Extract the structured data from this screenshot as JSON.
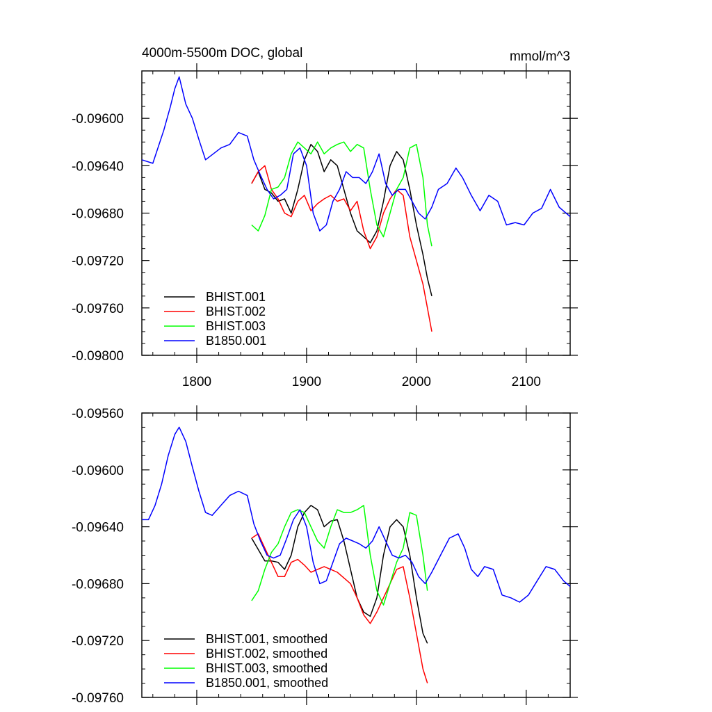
{
  "colors": {
    "BHIST.001": "#000000",
    "BHIST.002": "#ff0000",
    "BHIST.003": "#00ff00",
    "B1850.001": "#0000ff"
  },
  "chart_data": [
    {
      "type": "line",
      "title": "4000m-5500m DOC, global",
      "units": "mmol/m^3",
      "xlim": [
        1750,
        2140
      ],
      "ylim": [
        -0.098,
        -0.0956
      ],
      "x_ticks": [
        1800,
        1900,
        2000,
        2100
      ],
      "x_tick_labels": [
        "1800",
        "1900",
        "2000",
        "2100"
      ],
      "y_ticks": [
        -0.098,
        -0.0976,
        -0.0972,
        -0.0968,
        -0.0964,
        -0.096
      ],
      "y_tick_labels": [
        "-0.09800",
        "-0.09760",
        "-0.09720",
        "-0.09680",
        "-0.09640",
        "-0.09600"
      ],
      "legend_position": "bottom-left",
      "series": [
        {
          "name": "BHIST.001",
          "color_key": "BHIST.001",
          "x": [
            1850,
            1856,
            1862,
            1868,
            1874,
            1880,
            1886,
            1892,
            1898,
            1904,
            1910,
            1916,
            1922,
            1928,
            1934,
            1940,
            1946,
            1952,
            1958,
            1964,
            1970,
            1976,
            1982,
            1988,
            1994,
            2000,
            2006,
            2010,
            2014
          ],
          "y": [
            -0.09655,
            -0.09645,
            -0.0966,
            -0.09663,
            -0.0967,
            -0.09668,
            -0.0968,
            -0.0966,
            -0.09635,
            -0.09622,
            -0.09628,
            -0.09645,
            -0.09635,
            -0.0964,
            -0.0966,
            -0.0968,
            -0.09695,
            -0.097,
            -0.09705,
            -0.09695,
            -0.0967,
            -0.0964,
            -0.09628,
            -0.09635,
            -0.0966,
            -0.0969,
            -0.09715,
            -0.09735,
            -0.0975
          ]
        },
        {
          "name": "BHIST.002",
          "color_key": "BHIST.002",
          "x": [
            1850,
            1856,
            1862,
            1868,
            1874,
            1880,
            1886,
            1892,
            1898,
            1904,
            1910,
            1916,
            1922,
            1928,
            1934,
            1940,
            1946,
            1952,
            1958,
            1964,
            1970,
            1976,
            1982,
            1988,
            1994,
            2000,
            2006,
            2010,
            2014
          ],
          "y": [
            -0.09655,
            -0.09645,
            -0.0964,
            -0.0966,
            -0.09668,
            -0.0968,
            -0.09683,
            -0.0967,
            -0.09665,
            -0.09678,
            -0.09672,
            -0.09668,
            -0.09665,
            -0.0967,
            -0.09668,
            -0.09678,
            -0.0967,
            -0.09695,
            -0.0971,
            -0.097,
            -0.0968,
            -0.09668,
            -0.0966,
            -0.09665,
            -0.097,
            -0.0972,
            -0.0974,
            -0.0976,
            -0.0978
          ]
        },
        {
          "name": "BHIST.003",
          "color_key": "BHIST.003",
          "x": [
            1850,
            1856,
            1862,
            1868,
            1874,
            1880,
            1886,
            1892,
            1898,
            1904,
            1910,
            1916,
            1922,
            1928,
            1934,
            1940,
            1946,
            1952,
            1958,
            1964,
            1970,
            1976,
            1982,
            1988,
            1994,
            2000,
            2006,
            2010,
            2014
          ],
          "y": [
            -0.0969,
            -0.09695,
            -0.09682,
            -0.0966,
            -0.09658,
            -0.0965,
            -0.0963,
            -0.0962,
            -0.09625,
            -0.0963,
            -0.0962,
            -0.0963,
            -0.09625,
            -0.09622,
            -0.0962,
            -0.09628,
            -0.09622,
            -0.09625,
            -0.0966,
            -0.0969,
            -0.097,
            -0.0968,
            -0.0966,
            -0.0965,
            -0.09625,
            -0.09622,
            -0.0965,
            -0.0969,
            -0.09708
          ]
        },
        {
          "name": "B1850.001",
          "color_key": "B1850.001",
          "x": [
            1750,
            1760,
            1770,
            1776,
            1780,
            1784,
            1790,
            1796,
            1802,
            1808,
            1815,
            1822,
            1830,
            1838,
            1846,
            1852,
            1858,
            1864,
            1870,
            1876,
            1882,
            1888,
            1894,
            1900,
            1906,
            1912,
            1918,
            1924,
            1930,
            1936,
            1942,
            1948,
            1954,
            1960,
            1966,
            1972,
            1978,
            1984,
            1990,
            1996,
            2002,
            2008,
            2014,
            2020,
            2028,
            2036,
            2042,
            2050,
            2058,
            2066,
            2074,
            2082,
            2090,
            2098,
            2106,
            2114,
            2122,
            2130,
            2140
          ],
          "y": [
            -0.09635,
            -0.09638,
            -0.0961,
            -0.0959,
            -0.09575,
            -0.09565,
            -0.09588,
            -0.096,
            -0.09618,
            -0.09635,
            -0.0963,
            -0.09625,
            -0.09622,
            -0.09612,
            -0.09615,
            -0.09635,
            -0.09648,
            -0.0966,
            -0.09668,
            -0.09665,
            -0.0966,
            -0.0963,
            -0.09625,
            -0.0964,
            -0.0968,
            -0.09695,
            -0.0969,
            -0.0967,
            -0.0966,
            -0.09645,
            -0.0965,
            -0.0965,
            -0.09655,
            -0.09645,
            -0.0963,
            -0.09655,
            -0.09665,
            -0.0966,
            -0.0966,
            -0.0967,
            -0.0968,
            -0.09685,
            -0.09675,
            -0.0966,
            -0.09655,
            -0.09642,
            -0.0965,
            -0.09665,
            -0.09678,
            -0.09665,
            -0.0967,
            -0.0969,
            -0.09688,
            -0.0969,
            -0.0968,
            -0.09676,
            -0.0966,
            -0.09675,
            -0.09683
          ]
        }
      ],
      "legend": [
        "BHIST.001",
        "BHIST.002",
        "BHIST.003",
        "B1850.001"
      ]
    },
    {
      "type": "line",
      "xlim": [
        1750,
        2140
      ],
      "ylim": [
        -0.0976,
        -0.0956
      ],
      "x_ticks": [
        1800,
        1900,
        2000,
        2100
      ],
      "y_ticks": [
        -0.0976,
        -0.0972,
        -0.0968,
        -0.0964,
        -0.096,
        -0.0956
      ],
      "y_tick_labels": [
        "-0.09760",
        "-0.09720",
        "-0.09680",
        "-0.09640",
        "-0.09600",
        "-0.09560"
      ],
      "legend_position": "bottom-left",
      "series": [
        {
          "name": "BHIST.001, smoothed",
          "color_key": "BHIST.001",
          "x": [
            1850,
            1856,
            1862,
            1868,
            1874,
            1880,
            1886,
            1892,
            1898,
            1904,
            1910,
            1916,
            1922,
            1928,
            1934,
            1940,
            1946,
            1952,
            1958,
            1964,
            1970,
            1976,
            1982,
            1988,
            1994,
            2000,
            2006,
            2010
          ],
          "y": [
            -0.09648,
            -0.09656,
            -0.09664,
            -0.09664,
            -0.09665,
            -0.0967,
            -0.0966,
            -0.0964,
            -0.0963,
            -0.09625,
            -0.09628,
            -0.0964,
            -0.09636,
            -0.09635,
            -0.0965,
            -0.0967,
            -0.0969,
            -0.097,
            -0.09703,
            -0.0969,
            -0.0966,
            -0.0964,
            -0.09635,
            -0.0964,
            -0.0966,
            -0.0969,
            -0.09715,
            -0.09722
          ]
        },
        {
          "name": "BHIST.002, smoothed",
          "color_key": "BHIST.002",
          "x": [
            1850,
            1856,
            1862,
            1868,
            1874,
            1880,
            1886,
            1892,
            1898,
            1904,
            1910,
            1916,
            1922,
            1928,
            1934,
            1940,
            1946,
            1952,
            1958,
            1964,
            1970,
            1976,
            1982,
            1988,
            1994,
            2000,
            2006,
            2010
          ],
          "y": [
            -0.09648,
            -0.09645,
            -0.09655,
            -0.09665,
            -0.09675,
            -0.09675,
            -0.09665,
            -0.09663,
            -0.09667,
            -0.09672,
            -0.0967,
            -0.09668,
            -0.0967,
            -0.09672,
            -0.09676,
            -0.0968,
            -0.0969,
            -0.09702,
            -0.09708,
            -0.097,
            -0.0969,
            -0.0968,
            -0.0967,
            -0.09668,
            -0.0969,
            -0.09715,
            -0.0974,
            -0.0975
          ]
        },
        {
          "name": "BHIST.003, smoothed",
          "color_key": "BHIST.003",
          "x": [
            1850,
            1856,
            1862,
            1868,
            1874,
            1880,
            1886,
            1892,
            1898,
            1904,
            1910,
            1916,
            1922,
            1928,
            1934,
            1940,
            1946,
            1952,
            1958,
            1964,
            1970,
            1976,
            1982,
            1988,
            1994,
            2000,
            2006,
            2010
          ],
          "y": [
            -0.09692,
            -0.09685,
            -0.0967,
            -0.09658,
            -0.09652,
            -0.0964,
            -0.0963,
            -0.09628,
            -0.0963,
            -0.0964,
            -0.0965,
            -0.09655,
            -0.0964,
            -0.09628,
            -0.0963,
            -0.0963,
            -0.09628,
            -0.09625,
            -0.0966,
            -0.09685,
            -0.09695,
            -0.0968,
            -0.09665,
            -0.09655,
            -0.0963,
            -0.09632,
            -0.0966,
            -0.09685
          ]
        },
        {
          "name": "B1850.001, smoothed",
          "color_key": "B1850.001",
          "x": [
            1750,
            1756,
            1762,
            1768,
            1774,
            1780,
            1784,
            1790,
            1796,
            1802,
            1808,
            1814,
            1822,
            1830,
            1838,
            1846,
            1852,
            1858,
            1864,
            1870,
            1876,
            1882,
            1888,
            1894,
            1900,
            1906,
            1912,
            1918,
            1924,
            1930,
            1936,
            1942,
            1948,
            1954,
            1960,
            1966,
            1972,
            1978,
            1984,
            1990,
            1996,
            2002,
            2008,
            2014,
            2022,
            2030,
            2038,
            2044,
            2050,
            2056,
            2062,
            2070,
            2078,
            2086,
            2094,
            2102,
            2110,
            2118,
            2126,
            2134,
            2140
          ],
          "y": [
            -0.09635,
            -0.09635,
            -0.09625,
            -0.0961,
            -0.0959,
            -0.09575,
            -0.0957,
            -0.0958,
            -0.09598,
            -0.09615,
            -0.0963,
            -0.09632,
            -0.09625,
            -0.09618,
            -0.09615,
            -0.09618,
            -0.09638,
            -0.0965,
            -0.0966,
            -0.09662,
            -0.0966,
            -0.09648,
            -0.09635,
            -0.09628,
            -0.0964,
            -0.09665,
            -0.0968,
            -0.09678,
            -0.09665,
            -0.09652,
            -0.09648,
            -0.0965,
            -0.09652,
            -0.09655,
            -0.0965,
            -0.0964,
            -0.0965,
            -0.0966,
            -0.09662,
            -0.0966,
            -0.09665,
            -0.09675,
            -0.0968,
            -0.09672,
            -0.0966,
            -0.09648,
            -0.09645,
            -0.09655,
            -0.0967,
            -0.09675,
            -0.09668,
            -0.0967,
            -0.09688,
            -0.0969,
            -0.09693,
            -0.09688,
            -0.09678,
            -0.09668,
            -0.0967,
            -0.09678,
            -0.09682
          ]
        }
      ],
      "legend": [
        "BHIST.001, smoothed",
        "BHIST.002, smoothed",
        "BHIST.003, smoothed",
        "B1850.001, smoothed"
      ]
    }
  ]
}
